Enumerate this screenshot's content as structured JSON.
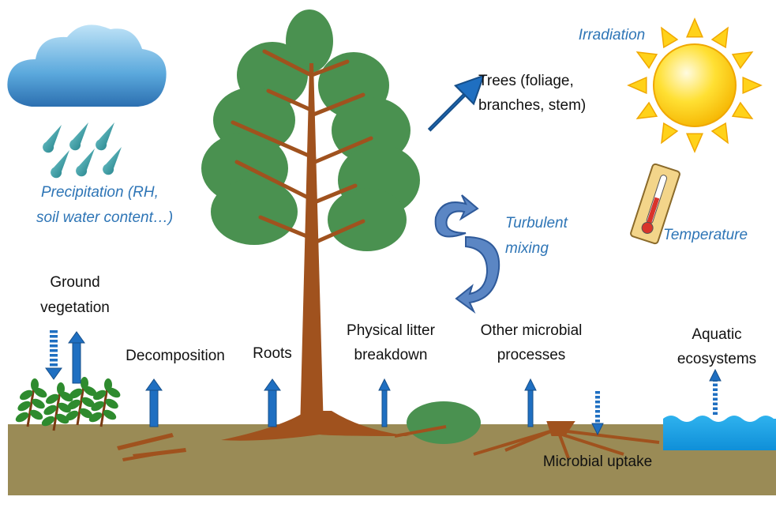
{
  "labels": {
    "irradiation": [
      "Irradiation"
    ],
    "trees": [
      "Trees (foliage,",
      "branches, stem)"
    ],
    "precipitation": [
      "Precipitation (RH,",
      "soil water content…)"
    ],
    "turbulent_mixing": [
      "Turbulent",
      "mixing"
    ],
    "temperature": [
      "Temperature"
    ],
    "ground_vegetation": [
      "Ground",
      "vegetation"
    ],
    "decomposition": [
      "Decomposition"
    ],
    "roots": [
      "Roots"
    ],
    "physical_litter_breakdown": [
      "Physical litter",
      "breakdown"
    ],
    "other_microbial_processes": [
      "Other microbial",
      "processes"
    ],
    "aquatic_ecosystems": [
      "Aquatic",
      "ecosystems"
    ],
    "microbial_uptake": [
      "Microbial uptake"
    ]
  }
}
